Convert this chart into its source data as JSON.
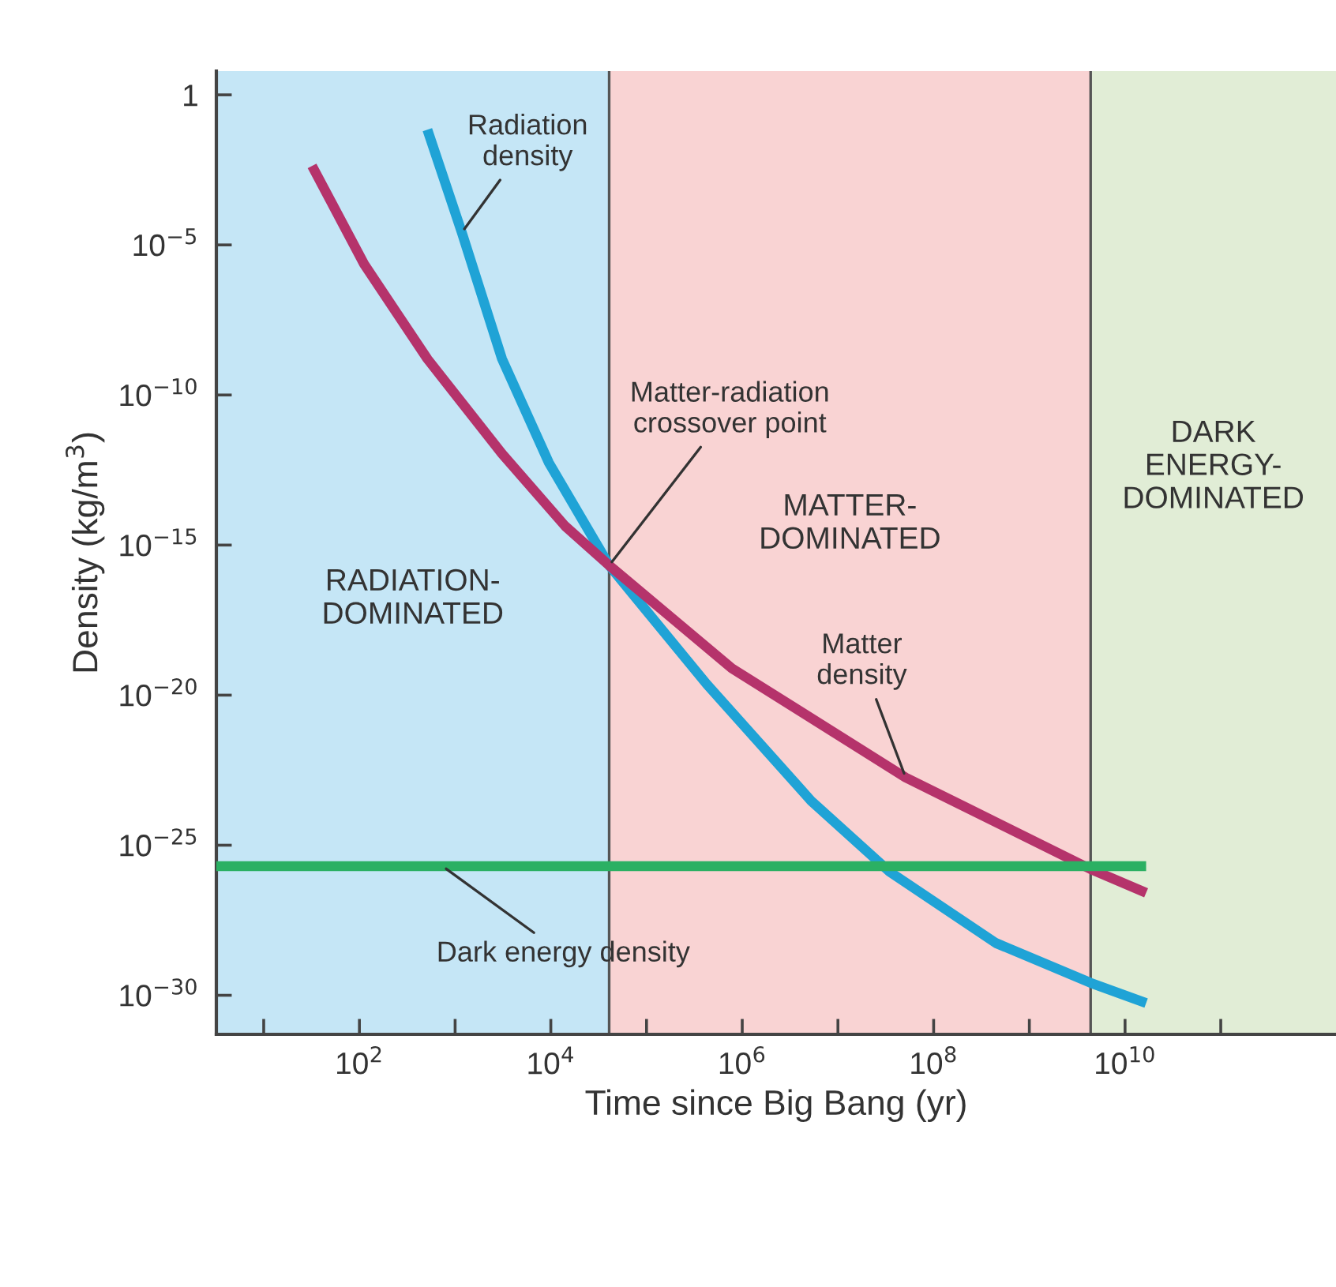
{
  "chart_data": {
    "type": "line",
    "xlabel": "Time since Big Bang (yr)",
    "ylabel": "Density (kg/m$^{3}$)",
    "log": "xy",
    "xlim": [
      3.2,
      1600000000000.0
    ],
    "ylim": [
      5e-32,
      6.2
    ],
    "xticks": [
      {
        "value": 10,
        "label": null
      },
      {
        "value": 100,
        "label": "10$^{2}$"
      },
      {
        "value": 1000,
        "label": null
      },
      {
        "value": 10000,
        "label": "10$^{4}$"
      },
      {
        "value": 100000,
        "label": null
      },
      {
        "value": 1000000,
        "label": "10$^{6}$"
      },
      {
        "value": 10000000,
        "label": null
      },
      {
        "value": 100000000,
        "label": "10$^{8}$"
      },
      {
        "value": 1000000000,
        "label": null
      },
      {
        "value": 10000000000,
        "label": "10$^{10}$"
      },
      {
        "value": 100000000000,
        "label": null
      }
    ],
    "yticks": [
      1,
      {
        "value": 1e-05,
        "label": "10$^{−5}$"
      },
      {
        "value": 1e-10,
        "label": "10$^{−10}$"
      },
      {
        "value": 1e-15,
        "label": "10$^{−15}$"
      },
      {
        "value": 1e-20,
        "label": "10$^{−20}$"
      },
      {
        "value": 1e-25,
        "label": "10$^{−25}$"
      },
      {
        "value": 1e-30,
        "label": "10$^{−30}$"
      }
    ],
    "grid": false,
    "legend": false,
    "series": [
      {
        "color": "#1fa3d6",
        "x": [
          513,
          1175,
          3090,
          9550,
          40700,
          426600,
          5250000.0,
          34700000.0,
          447000000.0,
          4370000000.0,
          16600000000.0
        ],
        "values": [
          0.069,
          2.6e-05,
          1.6e-09,
          5.5e-13,
          2.1e-16,
          2.3e-20,
          3e-24,
          1.3e-26,
          5.5e-29,
          2.6e-30,
          5.5e-31
        ]
      },
      {
        "color": "#b5336b",
        "x": [
          32,
          112,
          513,
          3090,
          14100,
          40700,
          780000.0,
          51000000.0,
          4370000000.0,
          16600000000.0
        ],
        "values": [
          0.0043,
          2.3e-06,
          1.6e-09,
          1.1e-12,
          4.3e-15,
          2.1e-16,
          7.8e-20,
          1.8e-23,
          1.6e-26,
          2.6e-27
        ]
      },
      {
        "color": "#2bb063",
        "x": [
          3.2,
          16600000000.0
        ],
        "values": [
          2e-26,
          2e-26
        ]
      }
    ],
    "bands": [
      {
        "axis": "x",
        "from": 3.2,
        "to": 40700,
        "label": "RADIATION-\nDOMINATED",
        "color": "#c5e6f6"
      },
      {
        "axis": "x",
        "from": 40700,
        "to": 4370000000.0,
        "label": "MATTER-\nDOMINATED",
        "color": "#f9d3d3"
      },
      {
        "axis": "x",
        "from": 4370000000.0,
        "to": 1600000000000.0,
        "label": "DARK\nENERGY-\nDOMINATED",
        "color": "#e1edd6"
      }
    ],
    "ref_lines": [
      {
        "axis": "x",
        "value": 40700,
        "color": "#555555"
      },
      {
        "axis": "x",
        "value": 4370000000.0,
        "color": "#555555"
      }
    ],
    "annotations": [
      {
        "text": "Radiation\ndensity",
        "x": 1175,
        "y": 2.6e-05
      },
      {
        "text": "Matter-radiation\ncrossover point",
        "x": 40700,
        "y": 2.1e-16
      },
      {
        "text": "Matter\ndensity",
        "x": 51000000.0,
        "y": 1.8e-23
      },
      {
        "text": "Dark energy density",
        "x": 740,
        "y": 2e-26
      }
    ]
  }
}
